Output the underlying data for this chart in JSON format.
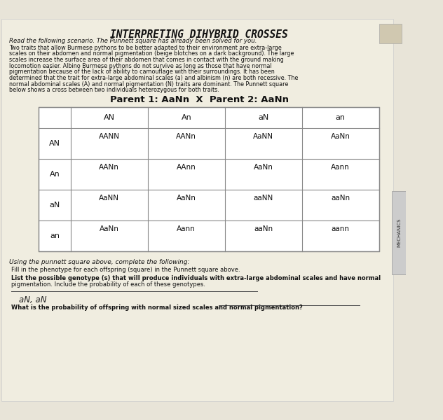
{
  "title": "INTERPRETING DIHYBRID CROSSES",
  "read_text": "Read the following scenario. The Punnett square has already been solved for you.",
  "body_text": "Two traits that allow Burmese pythons to be better adapted to their environment are extra-large\nscales on their abdomen and normal pigmentation (beige blotches on a dark background). The large\nscales increase the surface area of their abdomen that comes in contact with the ground making\nlocomotion easier. Albino Burmese pythons do not survive as long as those that have normal\npigmentation because of the lack of ability to camouflage with their surroundings. It has been\ndetermined that the trait for extra-large abdominal scales (a) and albinism (n) are both recessive. The\nnormal abdominal scales (A) and normal pigmentation (N) traits are dominant. The Punnett square\nbelow shows a cross between two individuals heterozygous for both traits.",
  "parent_text": "Parent 1: AaNn  X  Parent 2: AaNn",
  "col_headers": [
    "AN",
    "An",
    "aN",
    "an"
  ],
  "row_headers": [
    "AN",
    "An",
    "aN",
    "an"
  ],
  "cells": [
    [
      "AANN",
      "AANn",
      "AaNN",
      "AaNn"
    ],
    [
      "AANn",
      "AAnn",
      "AaNn",
      "Aann"
    ],
    [
      "AaNN",
      "AaNn",
      "aaNN",
      "aaNn"
    ],
    [
      "AaNn",
      "Aann",
      "aaNn",
      "aann"
    ]
  ],
  "using_text": "Using the punnett square above, complete the following:",
  "q1": "Fill in the phenotype for each offspring (square) in the Punnett square above.",
  "q2_bold": "List the possible genotype (s) that will produce individuals with extra-large abdominal scales and have normal\npigmentation.",
  "q2_normal": " Include the probability of each of these genotypes.",
  "answer_text": "aN, aN",
  "q3": "What is the probability of offspring with normal sized scales and normal pigmentation?",
  "bg_color": "#e8e4d8",
  "paper_color": "#f0ede0",
  "grid_color": "#888888",
  "text_color": "#111111",
  "title_color": "#111111"
}
